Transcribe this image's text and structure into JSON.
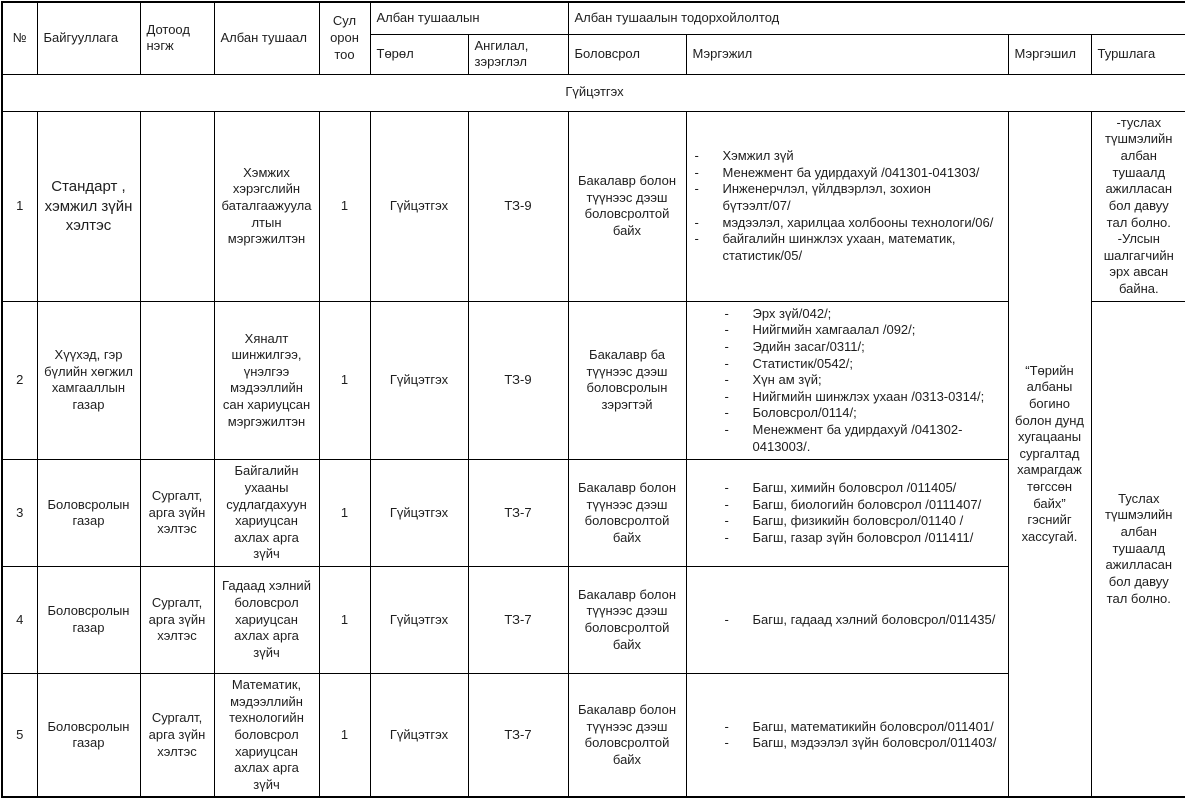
{
  "document": {
    "header": {
      "no": "№",
      "organization": "Байгууллага",
      "unit": "Дотоод нэгж",
      "position": "Албан тушаал",
      "vacancies": "Сул орон тоо",
      "group_position": "Албан тушаалын",
      "type": "Төрөл",
      "classification": "Ангилал, зэрэглэл",
      "group_description": "Албан тушаалын тодорхойлолтод",
      "education": "Боловсрол",
      "profession": "Мэргэжил",
      "specialization": "Мэргэшил",
      "experience": "Туршлага"
    },
    "section_title": "Гүйцэтгэх",
    "rows": [
      {
        "no": "1",
        "organization": "Стандарт , хэмжил зүйн хэлтэс",
        "unit": "",
        "position": "Хэмжих хэрэгслийн баталгаажуулалтын мэргэжилтэн",
        "vacancies": "1",
        "type": "Гүйцэтгэх",
        "classification": "ТЗ-9",
        "education": "Бакалавр болон түүнээс дээш боловсролтой байх",
        "professions": [
          "Хэмжил зүй",
          "Менежмент ба удирдахуй /041301-041303/",
          "Инженерчлэл, үйлдвэрлэл, зохион бүтээлт/07/",
          "мэдээлэл, харилцаа холбооны технологи/06/",
          "байгалийн шинжлэх ухаан, математик, статистик/05/"
        ]
      },
      {
        "no": "2",
        "organization": "Хүүхэд, гэр бүлийн хөгжил хамгааллын газар",
        "unit": "",
        "position": "Хяналт шинжилгээ, үнэлгээ мэдээллийн сан хариуцсан мэргэжилтэн",
        "vacancies": "1",
        "type": "Гүйцэтгэх",
        "classification": "ТЗ-9",
        "education": "Бакалавр ба түүнээс дээш боловсролын зэрэгтэй",
        "professions": [
          "Эрх зүй/042/;",
          "Нийгмийн хамгаалал /092/;",
          "Эдийн засаг/0311/;",
          "Статистик/0542/;",
          "Хүн ам зүй;",
          "Нийгмийн шинжлэх ухаан /0313-0314/;",
          "Боловсрол/0114/;",
          "Менежмент ба удирдахуй /041302-0413003/."
        ]
      },
      {
        "no": "3",
        "organization": "Боловсролын газар",
        "unit": "Сургалт, арга зүйн хэлтэс",
        "position": "Байгалийн ухааны судлагдахуун хариуцсан ахлах арга зүйч",
        "vacancies": "1",
        "type": "Гүйцэтгэх",
        "classification": "ТЗ-7",
        "education": "Бакалавр болон түүнээс дээш боловсролтой байх",
        "professions": [
          "Багш, химийн боловсрол /011405/",
          "Багш, биологийн боловсрол /0111407/",
          "Багш, физикийн боловсрол/01140 /",
          "Багш, газар зүйн боловсрол /011411/"
        ]
      },
      {
        "no": "4",
        "organization": "Боловсролын газар",
        "unit": "Сургалт, арга зүйн хэлтэс",
        "position": "Гадаад хэлний боловсрол хариуцсан ахлах арга зүйч",
        "vacancies": "1",
        "type": "Гүйцэтгэх",
        "classification": "ТЗ-7",
        "education": "Бакалавр болон түүнээс дээш боловсролтой байх",
        "professions": [
          "Багш, гадаад хэлний боловсрол/011435/"
        ]
      },
      {
        "no": "5",
        "organization": "Боловсролын газар",
        "unit": "Сургалт, арга зүйн хэлтэс",
        "position": "Математик, мэдээллийн технологийн боловсрол хариуцсан ахлах арга зүйч",
        "vacancies": "1",
        "type": "Гүйцэтгэх",
        "classification": "ТЗ-7",
        "education": "Бакалавр болон түүнээс дээш боловсролтой байх",
        "professions": [
          "Багш, математикийн боловсрол/011401/",
          "Багш, мэдээлэл зүйн боловсрол/011403/"
        ]
      }
    ],
    "specialization_note": "“Төрийн албаны богино болон дунд хугацааны сургалтад хамрагдаж төгссөн байх” гэснийг хассугай.",
    "experience_note_row1": [
      "-туслах түшмэлийн албан тушаалд ажилласан бол давуу тал болно.",
      "-Улсын шалгагчийн эрх авсан байна."
    ],
    "experience_note_rows2to5": "Туслах түшмэлийн албан тушаалд ажилласан бол давуу тал болно."
  }
}
